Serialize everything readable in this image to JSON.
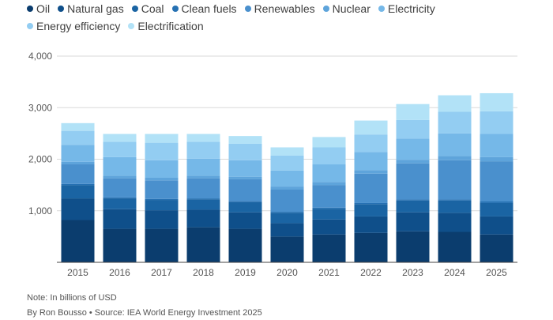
{
  "note": "Note: In billions of USD",
  "credit": "By Ron Bousso • Source: IEA World Energy Investment 2025",
  "chart_data": {
    "type": "bar",
    "stacked": true,
    "categories": [
      "2015",
      "2016",
      "2017",
      "2018",
      "2019",
      "2020",
      "2021",
      "2022",
      "2023",
      "2024",
      "2025"
    ],
    "ylim": [
      0,
      4000
    ],
    "yticks": [
      1000,
      2000,
      3000,
      4000
    ],
    "ytick_labels": [
      "1,000",
      "2,000",
      "3,000",
      "4,000"
    ],
    "legend_position": "top",
    "grid": true,
    "series": [
      {
        "name": "Oil",
        "color": "#0b3d6e",
        "values": [
          820,
          650,
          650,
          680,
          650,
          500,
          540,
          570,
          600,
          590,
          540
        ]
      },
      {
        "name": "Natural gas",
        "color": "#0f4f8a",
        "values": [
          420,
          380,
          360,
          340,
          320,
          260,
          290,
          320,
          370,
          370,
          350
        ]
      },
      {
        "name": "Coal",
        "color": "#1a64a3",
        "values": [
          260,
          210,
          200,
          200,
          200,
          200,
          210,
          240,
          230,
          240,
          260
        ]
      },
      {
        "name": "Clean fuels",
        "color": "#2671b3",
        "values": [
          20,
          20,
          20,
          20,
          20,
          20,
          20,
          20,
          20,
          20,
          30
        ]
      },
      {
        "name": "Renewables",
        "color": "#4a90cd",
        "values": [
          380,
          370,
          360,
          390,
          420,
          430,
          440,
          570,
          700,
          760,
          780
        ]
      },
      {
        "name": "Nuclear",
        "color": "#5ea4db",
        "values": [
          50,
          50,
          50,
          50,
          50,
          60,
          60,
          70,
          70,
          80,
          80
        ]
      },
      {
        "name": "Electricity",
        "color": "#75b8e8",
        "values": [
          330,
          360,
          340,
          330,
          320,
          310,
          340,
          350,
          410,
          440,
          450
        ]
      },
      {
        "name": "Energy efficiency",
        "color": "#93cdf2",
        "values": [
          270,
          300,
          340,
          330,
          320,
          290,
          330,
          340,
          360,
          420,
          440
        ]
      },
      {
        "name": "Electrification",
        "color": "#b2e2f7",
        "values": [
          150,
          150,
          170,
          150,
          150,
          160,
          200,
          270,
          310,
          320,
          350
        ]
      }
    ]
  }
}
